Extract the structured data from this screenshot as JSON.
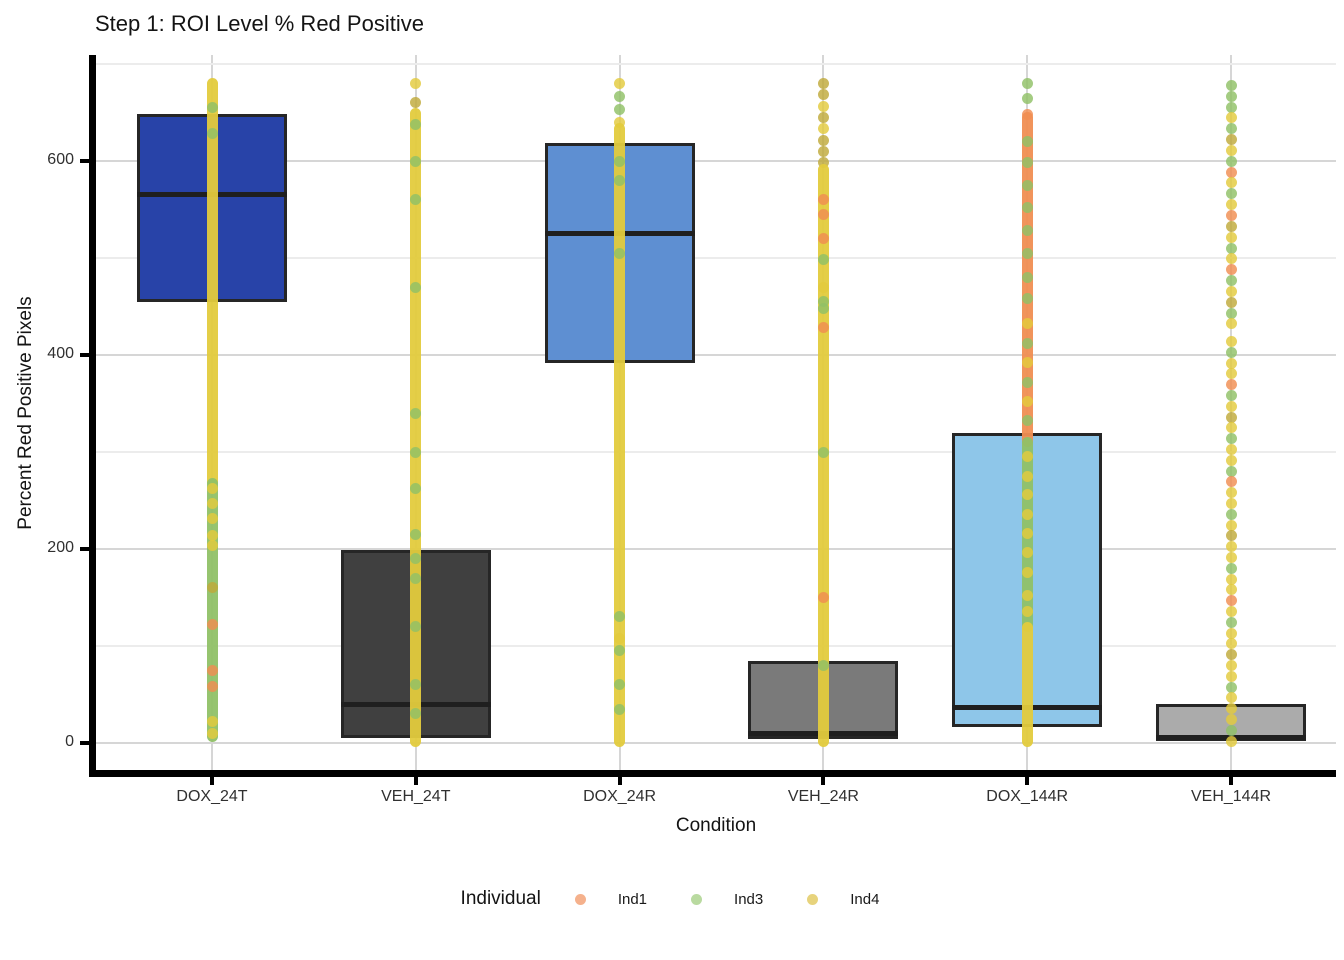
{
  "chart_data": {
    "type": "boxplot",
    "title": "Step 1: ROI Level % Red Positive",
    "xlabel": "Condition",
    "ylabel": "Percent Red Positive Pixels",
    "ylim": [
      -30,
      710
    ],
    "yticks": [
      0,
      200,
      400,
      600
    ],
    "yminor": [
      100,
      300,
      500,
      700
    ],
    "grid": "major-and-minor, light gray on white panel",
    "categories": [
      "DOX_24T",
      "VEH_24T",
      "DOX_24R",
      "VEH_24R",
      "DOX_144R",
      "VEH_144R"
    ],
    "boxes": [
      {
        "condition": "DOX_24T",
        "q1": 455,
        "median": 565,
        "q3": 648,
        "fill": "#2843A8"
      },
      {
        "condition": "VEH_24T",
        "q1": 5,
        "median": 40,
        "q3": 199,
        "fill": "#404040"
      },
      {
        "condition": "DOX_24R",
        "q1": 392,
        "median": 525,
        "q3": 619,
        "fill": "#5E8FD2"
      },
      {
        "condition": "VEH_24R",
        "q1": 4,
        "median": 10,
        "q3": 85,
        "fill": "#7A7A7A"
      },
      {
        "condition": "DOX_144R",
        "q1": 16,
        "median": 37,
        "q3": 320,
        "fill": "#8EC6E9"
      },
      {
        "condition": "VEH_144R",
        "q1": 2,
        "median": 6,
        "q3": 40,
        "fill": "#ABABAB"
      }
    ],
    "points_range": [
      0,
      680
    ],
    "point_colors": {
      "y": "#E3CB3D",
      "g": "#90C167",
      "o": "#F08E52",
      "d": "#BFA93B"
    },
    "legend": {
      "title": "Individual",
      "entries": [
        {
          "label": "Ind1",
          "color": "#F5B18C"
        },
        {
          "label": "Ind3",
          "color": "#B9DAA0"
        },
        {
          "label": "Ind4",
          "color": "#E7D37C"
        }
      ]
    },
    "strips": [
      {
        "condition": "DOX_24T",
        "segments": [
          {
            "style": "solid",
            "c": "y",
            "v1": 680,
            "v2": 268
          },
          {
            "style": "solid",
            "c": "g",
            "v1": 268,
            "v2": 6
          }
        ],
        "accents": [
          [
            655,
            "g"
          ],
          [
            628,
            "g"
          ],
          [
            262,
            "y"
          ],
          [
            247,
            "y"
          ],
          [
            231,
            "y"
          ],
          [
            214,
            "y"
          ],
          [
            204,
            "y"
          ],
          [
            160,
            "d"
          ],
          [
            122,
            "o"
          ],
          [
            75,
            "o"
          ],
          [
            58,
            "o"
          ],
          [
            22,
            "y"
          ],
          [
            10,
            "y"
          ]
        ]
      },
      {
        "condition": "VEH_24T",
        "segments": [
          {
            "style": "dots",
            "c": [
              "y",
              "d",
              "y"
            ],
            "v1": 680,
            "v2": 660
          },
          {
            "style": "solid",
            "c": "y",
            "v1": 650,
            "v2": 1
          }
        ],
        "accents": [
          [
            638,
            "g"
          ],
          [
            600,
            "g"
          ],
          [
            560,
            "g"
          ],
          [
            470,
            "g"
          ],
          [
            340,
            "g"
          ],
          [
            300,
            "g"
          ],
          [
            262,
            "g"
          ],
          [
            215,
            "g"
          ],
          [
            190,
            "g"
          ],
          [
            170,
            "g"
          ],
          [
            120,
            "g"
          ],
          [
            60,
            "g"
          ],
          [
            30,
            "g"
          ]
        ]
      },
      {
        "condition": "DOX_24R",
        "segments": [
          {
            "style": "dots",
            "c": [
              "y",
              "g",
              "g",
              "y"
            ],
            "v1": 680,
            "v2": 640
          },
          {
            "style": "solid",
            "c": "y",
            "v1": 634,
            "v2": 1
          }
        ],
        "accents": [
          [
            600,
            "g"
          ],
          [
            580,
            "g"
          ],
          [
            505,
            "g"
          ],
          [
            130,
            "g"
          ],
          [
            108,
            "y"
          ],
          [
            95,
            "g"
          ],
          [
            60,
            "g"
          ],
          [
            35,
            "g"
          ]
        ]
      },
      {
        "condition": "VEH_24R",
        "segments": [
          {
            "style": "dots",
            "c": [
              "d",
              "d",
              "y",
              "d",
              "y",
              "d",
              "d"
            ],
            "v1": 680,
            "v2": 598
          },
          {
            "style": "solid",
            "c": "y",
            "v1": 592,
            "v2": 1
          }
        ],
        "accents": [
          [
            560,
            "o"
          ],
          [
            545,
            "o"
          ],
          [
            520,
            "o"
          ],
          [
            498,
            "g"
          ],
          [
            470,
            "y"
          ],
          [
            455,
            "g"
          ],
          [
            448,
            "g"
          ],
          [
            428,
            "o"
          ],
          [
            300,
            "g"
          ],
          [
            150,
            "o"
          ],
          [
            80,
            "g"
          ]
        ]
      },
      {
        "condition": "DOX_144R",
        "segments": [
          {
            "style": "dots",
            "c": [
              "g",
              "g",
              "o",
              "g",
              "y"
            ],
            "v1": 680,
            "v2": 648
          },
          {
            "style": "solid",
            "c": "o",
            "v1": 645,
            "v2": 310
          },
          {
            "style": "solid",
            "c": "g",
            "v1": 310,
            "v2": 120
          },
          {
            "style": "solid",
            "c": "y",
            "v1": 120,
            "v2": 1
          }
        ],
        "accents": [
          [
            620,
            "g"
          ],
          [
            598,
            "g"
          ],
          [
            575,
            "g"
          ],
          [
            552,
            "g"
          ],
          [
            528,
            "g"
          ],
          [
            505,
            "g"
          ],
          [
            480,
            "g"
          ],
          [
            458,
            "g"
          ],
          [
            432,
            "y"
          ],
          [
            412,
            "g"
          ],
          [
            392,
            "y"
          ],
          [
            372,
            "g"
          ],
          [
            352,
            "y"
          ],
          [
            332,
            "g"
          ],
          [
            295,
            "y"
          ],
          [
            275,
            "y"
          ],
          [
            256,
            "y"
          ],
          [
            236,
            "y"
          ],
          [
            216,
            "y"
          ],
          [
            196,
            "y"
          ],
          [
            176,
            "y"
          ],
          [
            152,
            "y"
          ],
          [
            136,
            "y"
          ]
        ]
      },
      {
        "condition": "VEH_144R",
        "segments": [
          {
            "style": "dots",
            "c": [
              "g",
              "g",
              "g",
              "y",
              "g",
              "d",
              "y",
              "g",
              "o",
              "y",
              "g",
              "y",
              "o",
              "d",
              "y",
              "g",
              "y",
              "o",
              "g",
              "y",
              "d",
              "g",
              "y",
              "o"
            ],
            "v1": 678,
            "v2": 432
          },
          {
            "style": "dots",
            "c": [
              "y",
              "g",
              "y",
              "y",
              "o",
              "g",
              "y",
              "d",
              "y",
              "g",
              "y",
              "y",
              "g",
              "o",
              "y",
              "y",
              "g",
              "y",
              "d",
              "y",
              "y",
              "g",
              "y",
              "y",
              "o",
              "y",
              "g",
              "y",
              "y",
              "d",
              "y",
              "y",
              "g",
              "y",
              "y",
              "y",
              "g",
              "y",
              "y",
              "y"
            ],
            "v1": 414,
            "v2": 2
          }
        ],
        "accents": []
      }
    ]
  }
}
